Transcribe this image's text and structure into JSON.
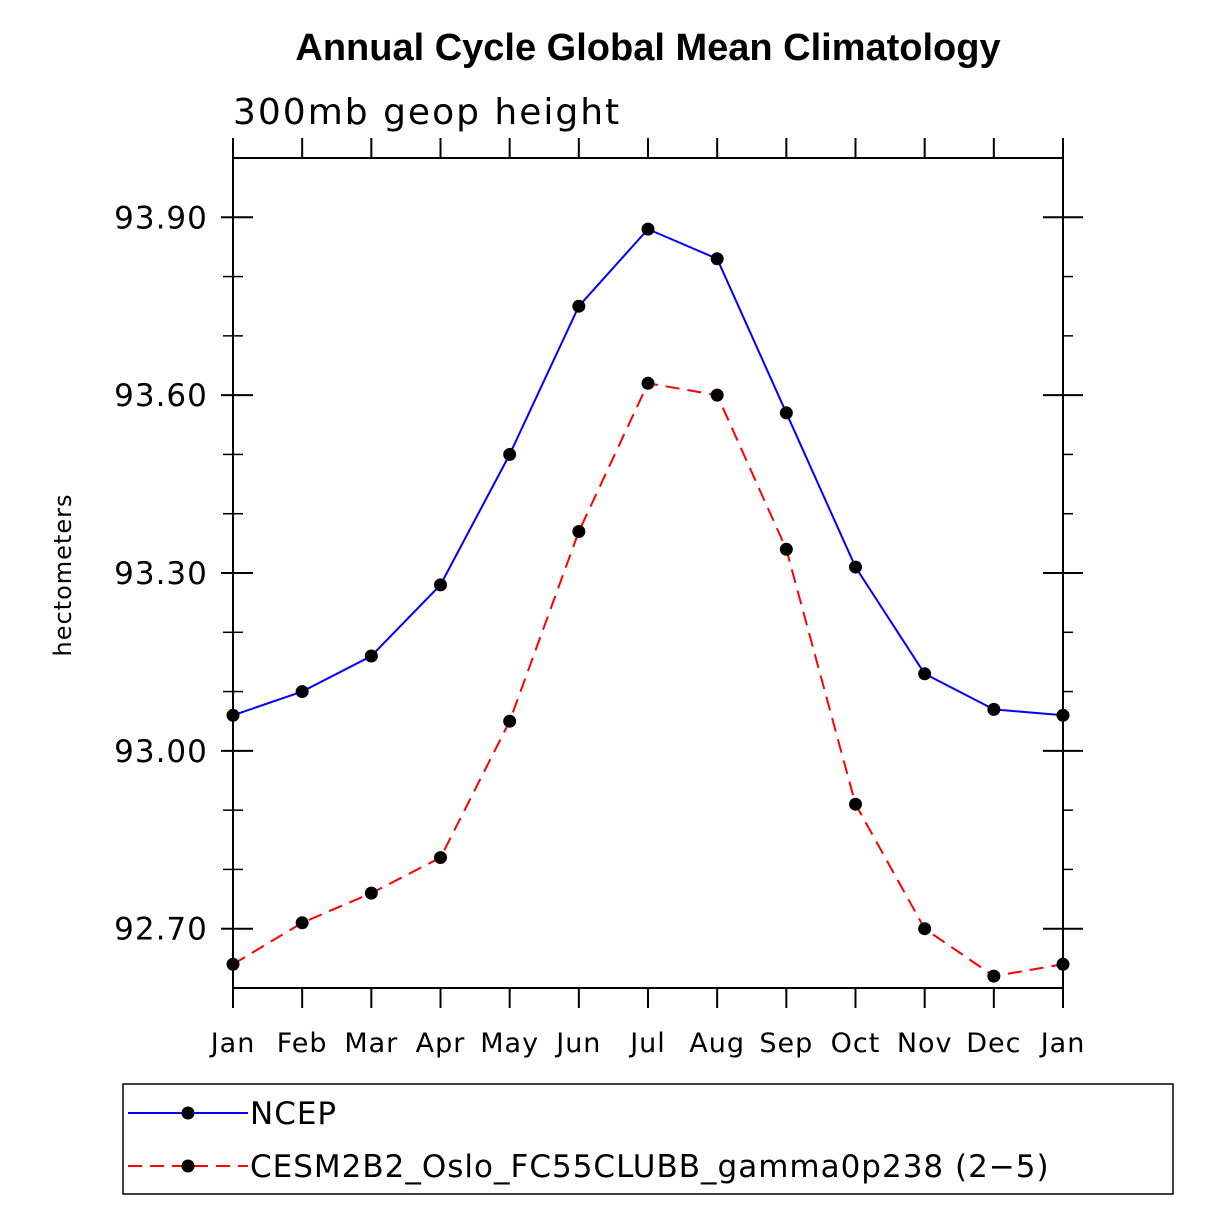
{
  "chart_data": {
    "type": "line",
    "title": "Annual Cycle Global Mean Climatology",
    "subtitle": "300mb geop height",
    "xlabel": "",
    "ylabel": "hectometers",
    "categories": [
      "Jan",
      "Feb",
      "Mar",
      "Apr",
      "May",
      "Jun",
      "Jul",
      "Aug",
      "Sep",
      "Oct",
      "Nov",
      "Dec",
      "Jan"
    ],
    "ylim": [
      92.6,
      94.0
    ],
    "yticks": [
      92.7,
      93.0,
      93.3,
      93.6,
      93.9
    ],
    "ytick_labels": [
      "92.70",
      "93.00",
      "93.30",
      "93.60",
      "93.90"
    ],
    "y_minor_step": 0.1,
    "grid": false,
    "legend_position": "bottom",
    "series": [
      {
        "name": "NCEP",
        "color": "#0000ff",
        "style": "solid",
        "values": [
          93.06,
          93.1,
          93.16,
          93.28,
          93.5,
          93.75,
          93.88,
          93.83,
          93.57,
          93.31,
          93.13,
          93.07,
          93.06
        ]
      },
      {
        "name": "CESM2B2_Oslo_FC55CLUBB_gamma0p238 (2−5)",
        "color": "#ff0000",
        "style": "dashed",
        "values": [
          92.64,
          92.71,
          92.76,
          92.82,
          93.05,
          93.37,
          93.62,
          93.6,
          93.34,
          92.91,
          92.7,
          92.62,
          92.64
        ]
      }
    ],
    "marker_color": "#000000"
  }
}
